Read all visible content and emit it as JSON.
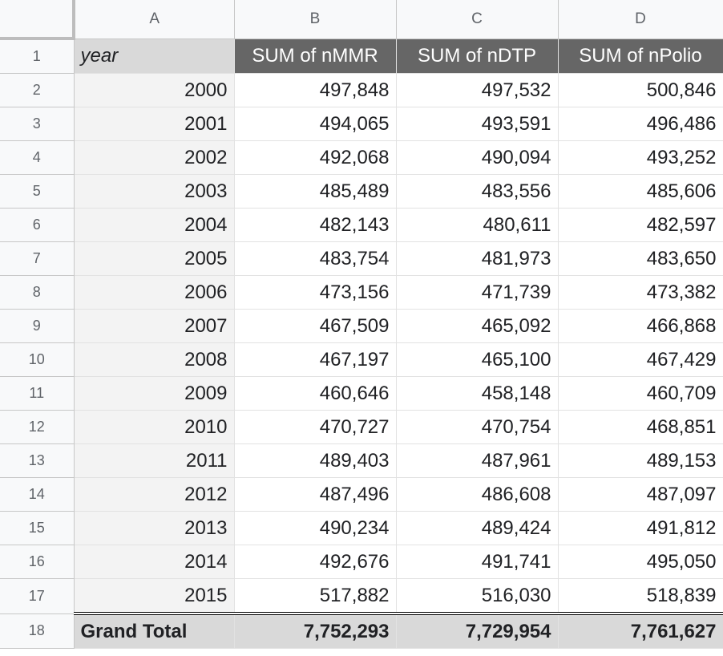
{
  "columns": [
    "A",
    "B",
    "C",
    "D"
  ],
  "header": {
    "row_number": "1",
    "year": "year",
    "mmr": "SUM of nMMR",
    "dtp": "SUM of nDTP",
    "polio": "SUM of nPolio"
  },
  "rows": [
    {
      "n": "2",
      "year": "2000",
      "mmr": "497,848",
      "dtp": "497,532",
      "polio": "500,846"
    },
    {
      "n": "3",
      "year": "2001",
      "mmr": "494,065",
      "dtp": "493,591",
      "polio": "496,486"
    },
    {
      "n": "4",
      "year": "2002",
      "mmr": "492,068",
      "dtp": "490,094",
      "polio": "493,252"
    },
    {
      "n": "5",
      "year": "2003",
      "mmr": "485,489",
      "dtp": "483,556",
      "polio": "485,606"
    },
    {
      "n": "6",
      "year": "2004",
      "mmr": "482,143",
      "dtp": "480,611",
      "polio": "482,597"
    },
    {
      "n": "7",
      "year": "2005",
      "mmr": "483,754",
      "dtp": "481,973",
      "polio": "483,650"
    },
    {
      "n": "8",
      "year": "2006",
      "mmr": "473,156",
      "dtp": "471,739",
      "polio": "473,382"
    },
    {
      "n": "9",
      "year": "2007",
      "mmr": "467,509",
      "dtp": "465,092",
      "polio": "466,868"
    },
    {
      "n": "10",
      "year": "2008",
      "mmr": "467,197",
      "dtp": "465,100",
      "polio": "467,429"
    },
    {
      "n": "11",
      "year": "2009",
      "mmr": "460,646",
      "dtp": "458,148",
      "polio": "460,709"
    },
    {
      "n": "12",
      "year": "2010",
      "mmr": "470,727",
      "dtp": "470,754",
      "polio": "468,851"
    },
    {
      "n": "13",
      "year": "2011",
      "mmr": "489,403",
      "dtp": "487,961",
      "polio": "489,153"
    },
    {
      "n": "14",
      "year": "2012",
      "mmr": "487,496",
      "dtp": "486,608",
      "polio": "487,097"
    },
    {
      "n": "15",
      "year": "2013",
      "mmr": "490,234",
      "dtp": "489,424",
      "polio": "491,812"
    },
    {
      "n": "16",
      "year": "2014",
      "mmr": "492,676",
      "dtp": "491,741",
      "polio": "495,050"
    },
    {
      "n": "17",
      "year": "2015",
      "mmr": "517,882",
      "dtp": "516,030",
      "polio": "518,839"
    }
  ],
  "total": {
    "n": "18",
    "label": "Grand Total",
    "mmr": "7,752,293",
    "dtp": "7,729,954",
    "polio": "7,761,627"
  },
  "colors": {
    "header_bg": "#666666",
    "header_text": "#ffffff",
    "total_bg": "#d9d9d9",
    "label_col_bg": "#f3f3f3"
  }
}
